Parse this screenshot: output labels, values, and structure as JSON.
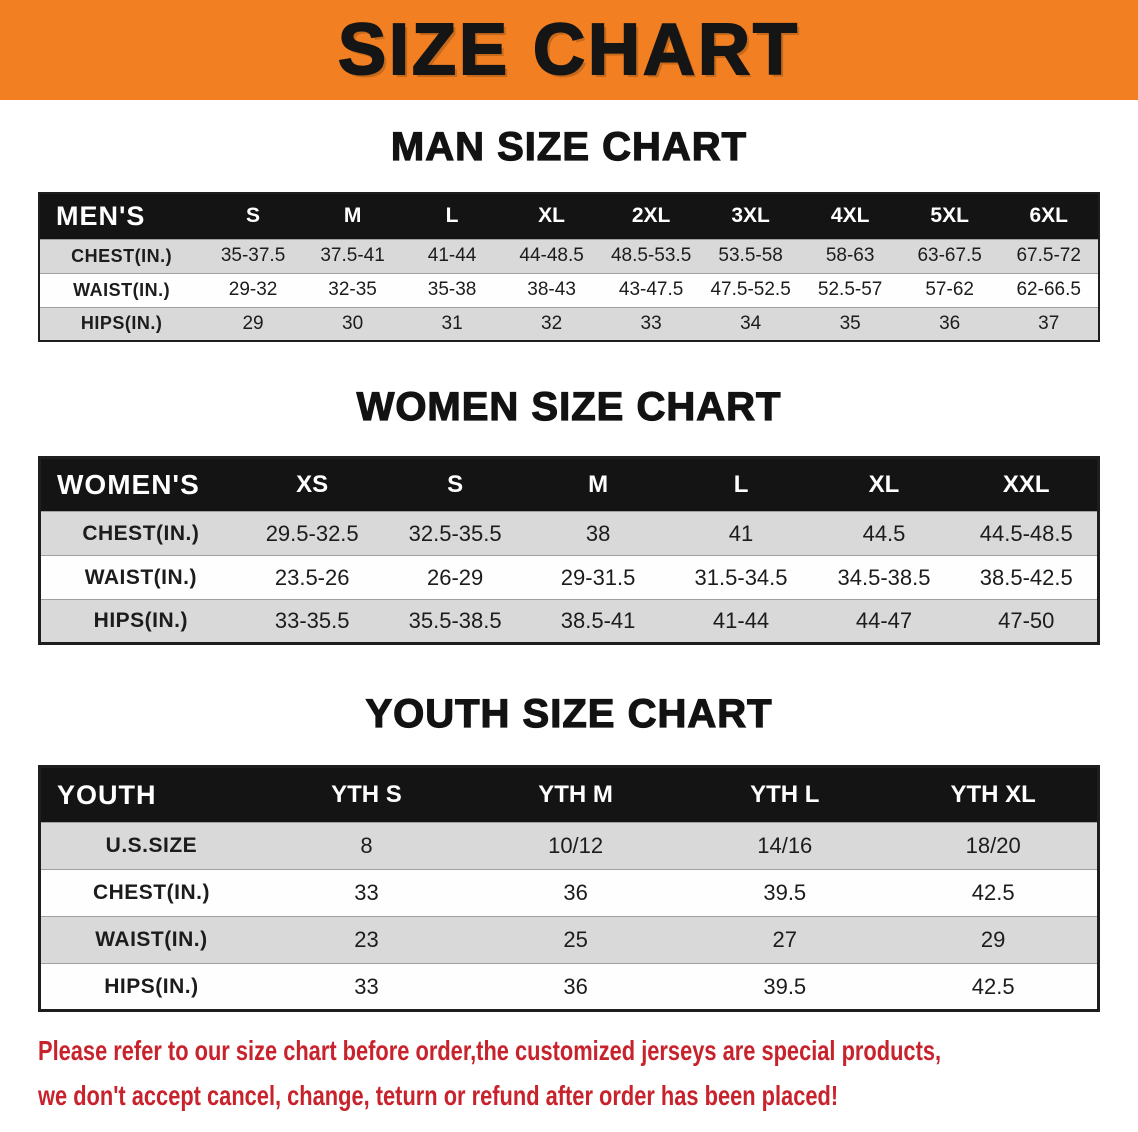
{
  "banner": {
    "title": "SIZE CHART"
  },
  "colors": {
    "banner_bg": "#f28022",
    "banner_text": "#151515",
    "table_header_bg": "#141414",
    "table_header_text": "#ffffff",
    "row_stripe": "#d9d9d9",
    "disclaimer_text": "#c8232c"
  },
  "chart_data": [
    {
      "type": "table",
      "title": "MAN SIZE CHART",
      "corner_label": "MEN'S",
      "columns": [
        "S",
        "M",
        "L",
        "XL",
        "2XL",
        "3XL",
        "4XL",
        "5XL",
        "6XL"
      ],
      "rows": [
        {
          "label": "CHEST(IN.)",
          "values": [
            "35-37.5",
            "37.5-41",
            "41-44",
            "44-48.5",
            "48.5-53.5",
            "53.5-58",
            "58-63",
            "63-67.5",
            "67.5-72"
          ]
        },
        {
          "label": "WAIST(IN.)",
          "values": [
            "29-32",
            "32-35",
            "35-38",
            "38-43",
            "43-47.5",
            "47.5-52.5",
            "52.5-57",
            "57-62",
            "62-66.5"
          ]
        },
        {
          "label": "HIPS(IN.)",
          "values": [
            "29",
            "30",
            "31",
            "32",
            "33",
            "34",
            "35",
            "36",
            "37"
          ]
        }
      ]
    },
    {
      "type": "table",
      "title": "WOMEN SIZE CHART",
      "corner_label": "WOMEN'S",
      "columns": [
        "XS",
        "S",
        "M",
        "L",
        "XL",
        "XXL"
      ],
      "rows": [
        {
          "label": "CHEST(IN.)",
          "values": [
            "29.5-32.5",
            "32.5-35.5",
            "38",
            "41",
            "44.5",
            "44.5-48.5"
          ]
        },
        {
          "label": "WAIST(IN.)",
          "values": [
            "23.5-26",
            "26-29",
            "29-31.5",
            "31.5-34.5",
            "34.5-38.5",
            "38.5-42.5"
          ]
        },
        {
          "label": "HIPS(IN.)",
          "values": [
            "33-35.5",
            "35.5-38.5",
            "38.5-41",
            "41-44",
            "44-47",
            "47-50"
          ]
        }
      ]
    },
    {
      "type": "table",
      "title": "YOUTH SIZE CHART",
      "corner_label": "YOUTH",
      "columns": [
        "YTH S",
        "YTH M",
        "YTH L",
        "YTH XL"
      ],
      "rows": [
        {
          "label": "U.S.SIZE",
          "values": [
            "8",
            "10/12",
            "14/16",
            "18/20"
          ]
        },
        {
          "label": "CHEST(IN.)",
          "values": [
            "33",
            "36",
            "39.5",
            "42.5"
          ]
        },
        {
          "label": "WAIST(IN.)",
          "values": [
            "23",
            "25",
            "27",
            "29"
          ]
        },
        {
          "label": "HIPS(IN.)",
          "values": [
            "33",
            "36",
            "39.5",
            "42.5"
          ]
        }
      ]
    }
  ],
  "disclaimer": {
    "lines": [
      "Please refer to our size chart before order,the customized jerseys are special products,",
      "we don't accept cancel, change, teturn or refund after order has been placed!"
    ]
  }
}
